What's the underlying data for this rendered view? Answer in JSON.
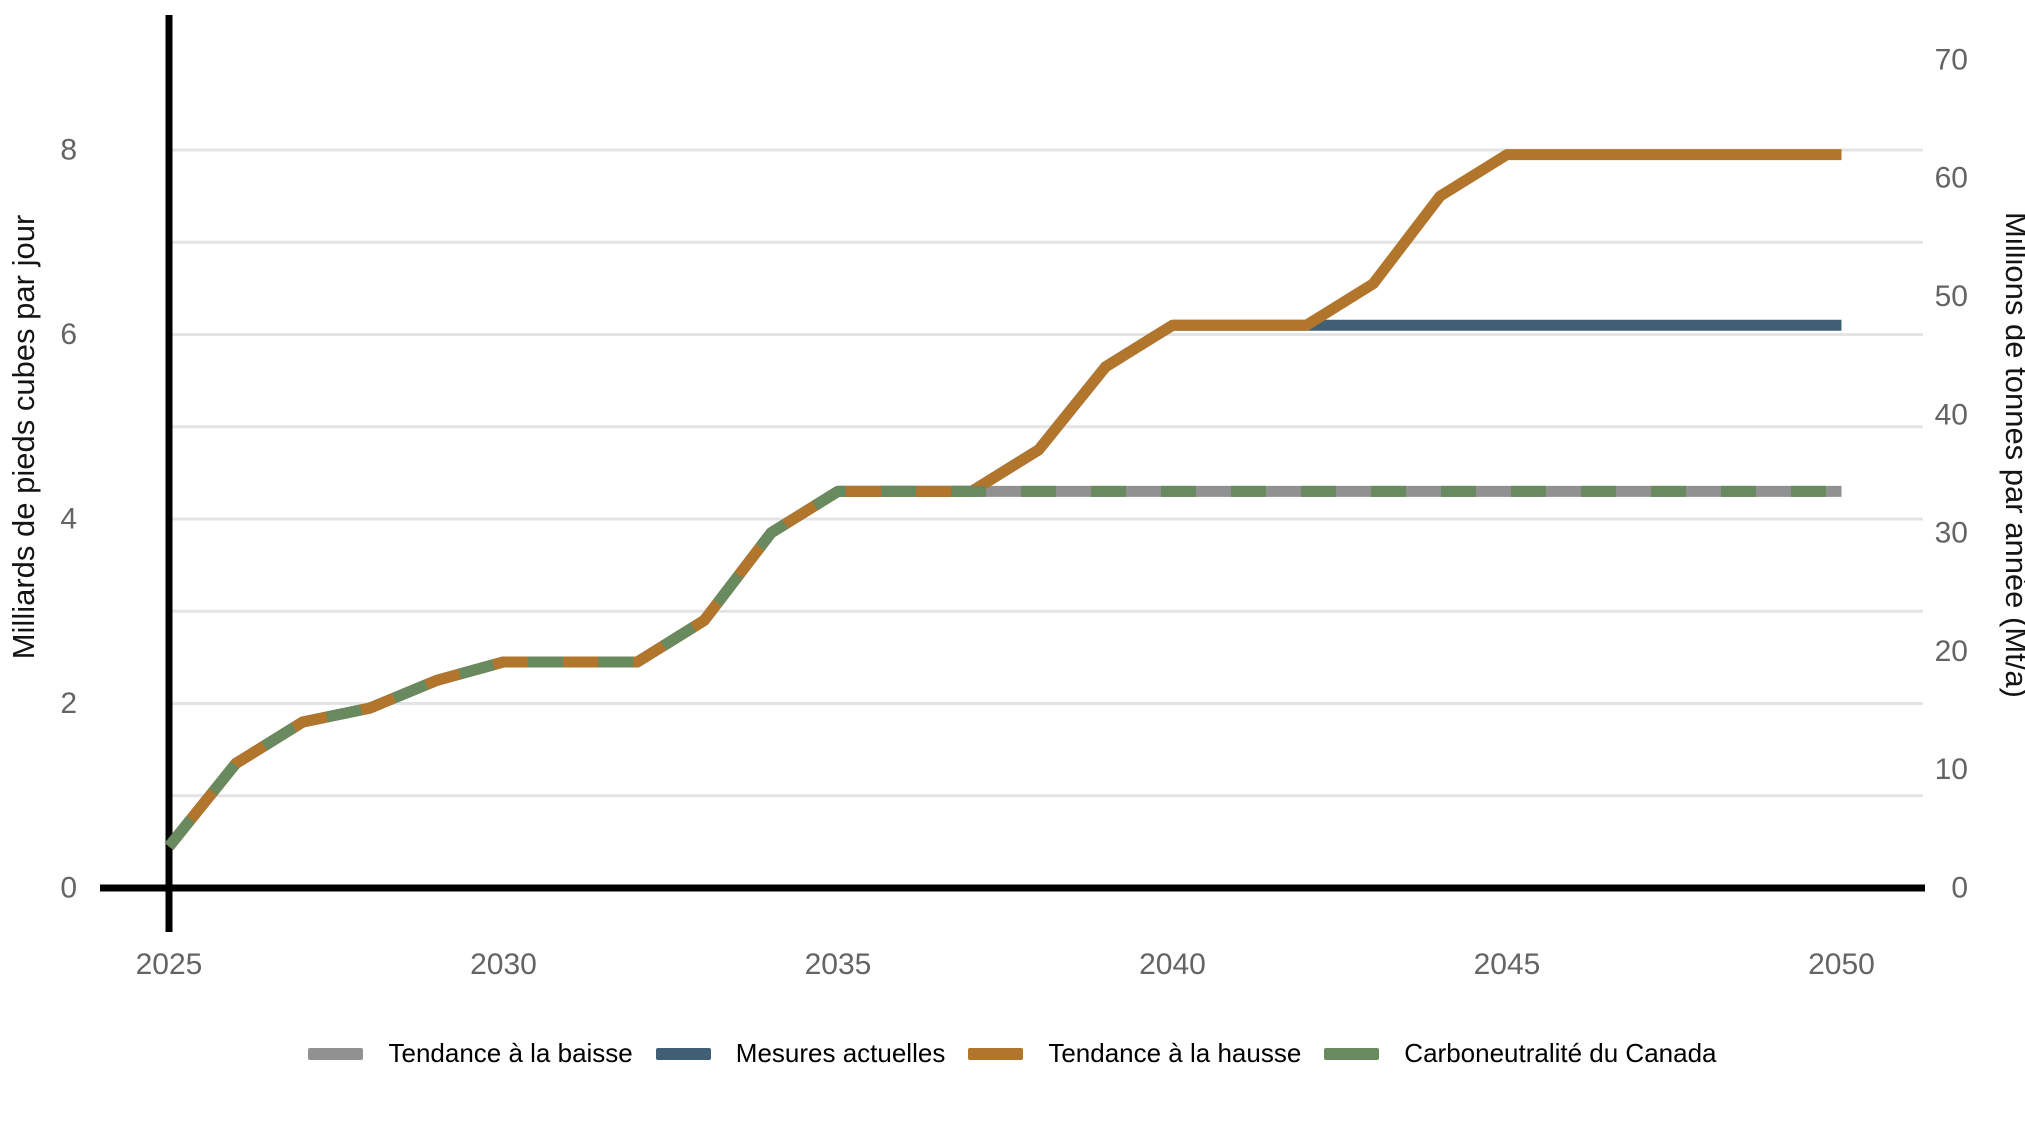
{
  "chart": {
    "colors": {
      "background": "#ffffff",
      "axis": "#000000",
      "gridline": "#e4e4e4",
      "tick_label": "#646464",
      "axis_title": "#141414"
    },
    "left_axis": {
      "title": "Milliards de pieds cubes par jour",
      "ticks": [
        0,
        2,
        4,
        6,
        8
      ],
      "gridlines": [
        1,
        2,
        3,
        4,
        5,
        6,
        7,
        8
      ],
      "range": [
        0,
        9.45
      ]
    },
    "right_axis": {
      "title": "Millions de tonnes par année (Mt/a)",
      "ticks": [
        0,
        10,
        20,
        30,
        40,
        50,
        60,
        70
      ],
      "range": [
        0,
        73.8
      ]
    },
    "x_axis": {
      "ticks": [
        2025,
        2030,
        2035,
        2040,
        2045,
        2050
      ],
      "range": [
        2025,
        2050
      ]
    }
  },
  "chart_data": {
    "type": "line",
    "title": "",
    "xlabel": "",
    "ylabel_left": "Milliards de pieds cubes par jour",
    "ylabel_right": "Millions de tonnes par année (Mt/a)",
    "legend_position": "bottom-center",
    "grid": true,
    "x_years": [
      2025,
      2026,
      2027,
      2028,
      2029,
      2030,
      2031,
      2032,
      2033,
      2034,
      2035,
      2036,
      2037,
      2038,
      2039,
      2040,
      2041,
      2042,
      2043,
      2044,
      2045,
      2046,
      2047,
      2048,
      2049,
      2050
    ],
    "series": [
      {
        "name": "Tendance à la baisse",
        "color": "#919191",
        "style": "solid",
        "values": [
          0.45,
          1.35,
          1.8,
          1.95,
          2.25,
          2.45,
          2.45,
          2.45,
          2.9,
          3.85,
          4.3,
          4.3,
          4.3,
          4.3,
          4.3,
          4.3,
          4.3,
          4.3,
          4.3,
          4.3,
          4.3,
          4.3,
          4.3,
          4.3,
          4.3,
          4.3
        ]
      },
      {
        "name": "Mesures actuelles",
        "color": "#415f74",
        "style": "solid",
        "values": [
          0.45,
          1.35,
          1.8,
          1.95,
          2.25,
          2.45,
          2.45,
          2.45,
          2.9,
          3.85,
          4.3,
          4.3,
          4.3,
          4.75,
          5.65,
          6.1,
          6.1,
          6.1,
          6.1,
          6.1,
          6.1,
          6.1,
          6.1,
          6.1,
          6.1,
          6.1
        ]
      },
      {
        "name": "Tendance à la hausse",
        "color": "#b1762b",
        "style": "solid",
        "values": [
          0.45,
          1.35,
          1.8,
          1.95,
          2.25,
          2.45,
          2.45,
          2.45,
          2.9,
          3.85,
          4.3,
          4.3,
          4.3,
          4.75,
          5.65,
          6.1,
          6.1,
          6.1,
          6.55,
          7.5,
          7.95,
          7.95,
          7.95,
          7.95,
          7.95,
          7.95
        ]
      },
      {
        "name": "Carboneutralité du Canada",
        "color": "#69895f",
        "style": "dashed",
        "values": [
          0.45,
          1.35,
          1.8,
          1.95,
          2.25,
          2.45,
          2.45,
          2.45,
          2.9,
          3.85,
          4.3,
          4.3,
          4.3,
          4.3,
          4.3,
          4.3,
          4.3,
          4.3,
          4.3,
          4.3,
          4.3,
          4.3,
          4.3,
          4.3,
          4.3,
          4.3
        ]
      }
    ]
  }
}
